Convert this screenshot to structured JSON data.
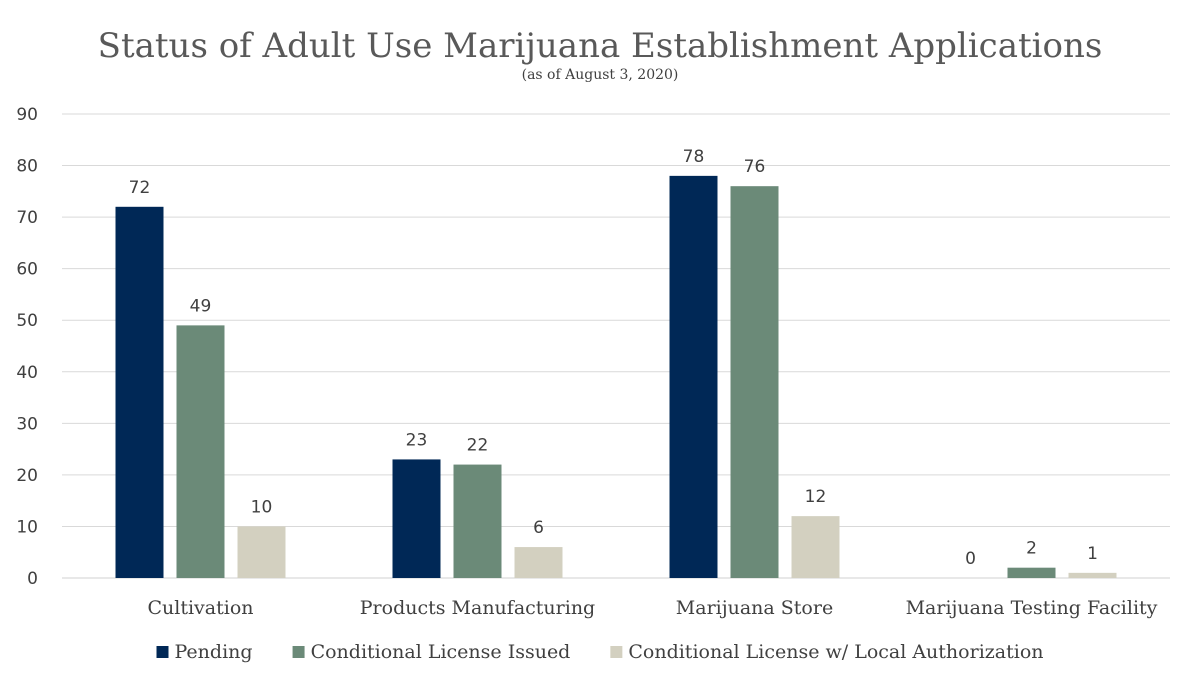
{
  "chart_data": {
    "type": "bar",
    "title": "Status of Adult Use Marijuana Establishment Applications",
    "subtitle": "(as of August 3, 2020)",
    "xlabel": "",
    "ylabel": "",
    "ylim": [
      0,
      90
    ],
    "yticks": [
      0,
      10,
      20,
      30,
      40,
      50,
      60,
      70,
      80,
      90
    ],
    "grid": true,
    "legend_position": "bottom",
    "categories": [
      "Cultivation",
      "Products Manufacturing",
      "Marijuana Store",
      "Marijuana Testing Facility"
    ],
    "series": [
      {
        "name": "Pending",
        "color": "#002856",
        "values": [
          72,
          23,
          78,
          0
        ]
      },
      {
        "name": "Conditional License Issued",
        "color": "#6b8a78",
        "values": [
          49,
          22,
          76,
          2
        ]
      },
      {
        "name": "Conditional License w/ Local Authorization",
        "color": "#d3d0c0",
        "values": [
          10,
          6,
          12,
          1
        ]
      }
    ]
  }
}
